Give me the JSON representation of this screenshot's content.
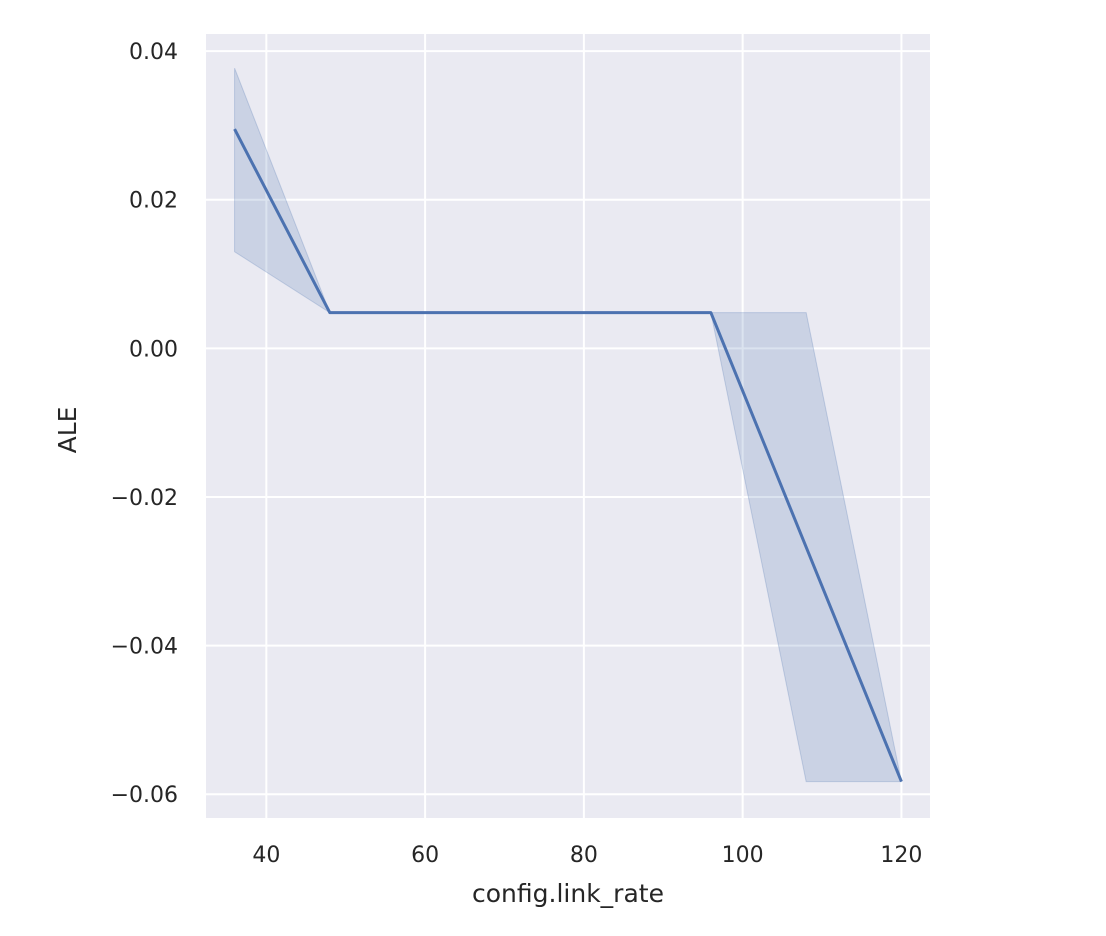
{
  "chart_data": {
    "type": "line",
    "xlabel": "config.link_rate",
    "ylabel": "ALE",
    "xlim": [
      32.4,
      123.6
    ],
    "ylim": [
      -0.0632,
      0.0423
    ],
    "grid": true,
    "legend": "none",
    "x_ticks": [
      {
        "value": 40,
        "label": "40"
      },
      {
        "value": 60,
        "label": "60"
      },
      {
        "value": 80,
        "label": "80"
      },
      {
        "value": 100,
        "label": "100"
      },
      {
        "value": 120,
        "label": "120"
      }
    ],
    "y_ticks": [
      {
        "value": 0.04,
        "label": "0.04"
      },
      {
        "value": 0.02,
        "label": "0.02"
      },
      {
        "value": 0.0,
        "label": "0.00"
      },
      {
        "value": -0.02,
        "label": "−0.02"
      },
      {
        "value": -0.04,
        "label": "−0.04"
      },
      {
        "value": -0.06,
        "label": "−0.06"
      }
    ],
    "series": [
      {
        "color": "#4c72b0",
        "x": [
          36,
          48,
          96,
          120
        ],
        "y": [
          0.0295,
          0.0048,
          0.0048,
          -0.0583
        ],
        "band_upper": {
          "x": [
            36,
            48,
            96,
            108,
            120
          ],
          "y": [
            0.0377,
            0.0048,
            0.0048,
            0.0048,
            -0.0583
          ]
        },
        "band_lower": {
          "x": [
            36,
            48,
            96,
            108,
            120
          ],
          "y": [
            0.013,
            0.0048,
            0.0048,
            -0.0583,
            -0.0583
          ]
        }
      }
    ]
  },
  "colors": {
    "plot_background": "#eaeaf2",
    "grid": "#ffffff",
    "line": "#4c72b0",
    "band": "#4c72b0"
  }
}
